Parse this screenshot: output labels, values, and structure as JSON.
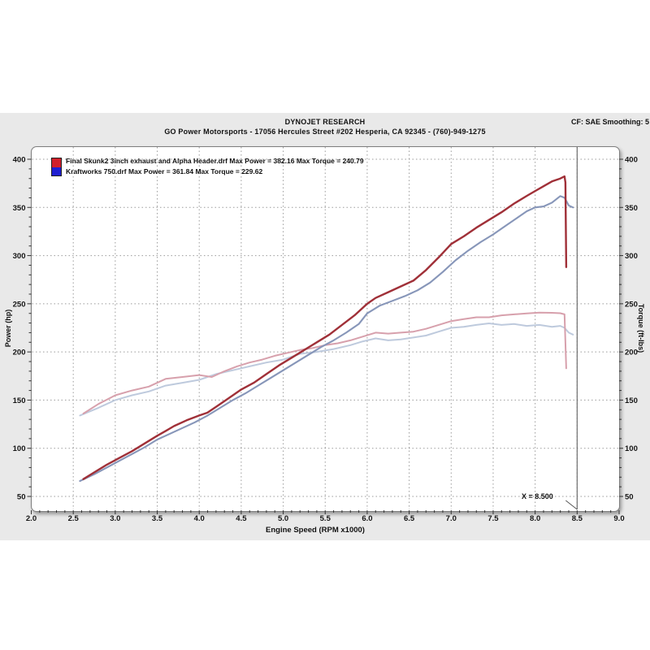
{
  "header": {
    "title": "DYNOJET RESEARCH",
    "subtitle": "GO Power Motorsports - 17056 Hercules Street #202 Hesperia, CA 92345 - (760)-949-1275",
    "cf": "CF: SAE  Smoothing: 5"
  },
  "legend": {
    "swatch_top_color": "#d1202a",
    "swatch_bottom_color": "#1f1fd1",
    "items": [
      {
        "label": "Final Skunk2 3inch exhaust and Alpha Header.drf Max Power = 382.16 Max Torque = 240.79"
      },
      {
        "label": "Kraftworks 750.drf Max Power = 361.84 Max Torque = 229.62"
      }
    ]
  },
  "chart_data": {
    "type": "line",
    "title": "DYNOJET RESEARCH",
    "xlabel": "Engine Speed (RPM x1000)",
    "ylabel_left": "Power (hp)",
    "ylabel_right": "Torque (ft-lbs)",
    "xlim": [
      2.0,
      9.0
    ],
    "ylim_labels": [
      50,
      400
    ],
    "x_tick_labels": [
      "2.0",
      "2.5",
      "3.0",
      "3.5",
      "4.0",
      "4.5",
      "5.0",
      "5.5",
      "6.0",
      "6.5",
      "7.0",
      "7.5",
      "8.0",
      "8.5",
      "9.0"
    ],
    "y_ticks": [
      50,
      100,
      150,
      200,
      250,
      300,
      350,
      400
    ],
    "x_minor_step": 0.1,
    "y_minor_step": 10,
    "grid": true,
    "grid_color": "#9b9b9b",
    "legend_position": "top-left",
    "cursor": {
      "x": 8.5,
      "label": "X = 8.500"
    },
    "series": [
      {
        "name": "Final Skunk2 3inch exhaust and Alpha Header.drf - Power",
        "axis": "power_hp",
        "max": 382.16,
        "color": "#a03038",
        "width": 2.4,
        "points": [
          [
            2.62,
            68
          ],
          [
            2.75,
            75
          ],
          [
            2.9,
            83
          ],
          [
            3.05,
            90
          ],
          [
            3.2,
            97
          ],
          [
            3.35,
            105
          ],
          [
            3.5,
            113
          ],
          [
            3.6,
            118
          ],
          [
            3.7,
            123
          ],
          [
            3.85,
            129
          ],
          [
            4.0,
            134
          ],
          [
            4.1,
            137
          ],
          [
            4.2,
            143
          ],
          [
            4.35,
            152
          ],
          [
            4.5,
            161
          ],
          [
            4.65,
            168
          ],
          [
            4.8,
            177
          ],
          [
            4.95,
            186
          ],
          [
            5.1,
            194
          ],
          [
            5.25,
            202
          ],
          [
            5.4,
            210
          ],
          [
            5.55,
            218
          ],
          [
            5.7,
            228
          ],
          [
            5.85,
            238
          ],
          [
            6.0,
            250
          ],
          [
            6.1,
            256
          ],
          [
            6.25,
            262
          ],
          [
            6.4,
            268
          ],
          [
            6.55,
            274
          ],
          [
            6.7,
            285
          ],
          [
            6.85,
            298
          ],
          [
            7.0,
            312
          ],
          [
            7.15,
            320
          ],
          [
            7.3,
            329
          ],
          [
            7.45,
            337
          ],
          [
            7.6,
            345
          ],
          [
            7.75,
            354
          ],
          [
            7.9,
            362
          ],
          [
            8.0,
            367
          ],
          [
            8.1,
            372
          ],
          [
            8.2,
            377
          ],
          [
            8.3,
            380
          ],
          [
            8.35,
            382.2
          ],
          [
            8.36,
            376
          ],
          [
            8.37,
            288
          ]
        ]
      },
      {
        "name": "Kraftworks 750.drf - Power",
        "axis": "power_hp",
        "max": 361.84,
        "color": "#8796b9",
        "width": 2.1,
        "points": [
          [
            2.58,
            66
          ],
          [
            2.75,
            73
          ],
          [
            2.9,
            80
          ],
          [
            3.05,
            87
          ],
          [
            3.2,
            94
          ],
          [
            3.35,
            101
          ],
          [
            3.5,
            109
          ],
          [
            3.65,
            115
          ],
          [
            3.8,
            121
          ],
          [
            3.95,
            127
          ],
          [
            4.1,
            134
          ],
          [
            4.25,
            142
          ],
          [
            4.4,
            150
          ],
          [
            4.55,
            157
          ],
          [
            4.7,
            165
          ],
          [
            4.85,
            173
          ],
          [
            5.0,
            181
          ],
          [
            5.15,
            189
          ],
          [
            5.3,
            197
          ],
          [
            5.45,
            205
          ],
          [
            5.6,
            212
          ],
          [
            5.75,
            220
          ],
          [
            5.9,
            229
          ],
          [
            6.0,
            240
          ],
          [
            6.15,
            248
          ],
          [
            6.3,
            253
          ],
          [
            6.45,
            258
          ],
          [
            6.6,
            264
          ],
          [
            6.75,
            272
          ],
          [
            6.9,
            283
          ],
          [
            7.05,
            295
          ],
          [
            7.2,
            305
          ],
          [
            7.35,
            314
          ],
          [
            7.5,
            322
          ],
          [
            7.65,
            331
          ],
          [
            7.8,
            340
          ],
          [
            7.9,
            346
          ],
          [
            8.0,
            350
          ],
          [
            8.1,
            351
          ],
          [
            8.2,
            355
          ],
          [
            8.3,
            361.8
          ],
          [
            8.35,
            360
          ],
          [
            8.4,
            352
          ],
          [
            8.45,
            350
          ]
        ]
      },
      {
        "name": "Final Skunk2 3inch exhaust and Alpha Header.drf - Torque",
        "axis": "torque_ftlbs",
        "max": 240.79,
        "color": "#d7a0ac",
        "width": 2.0,
        "points": [
          [
            2.62,
            136
          ],
          [
            2.8,
            146
          ],
          [
            3.0,
            155
          ],
          [
            3.2,
            160
          ],
          [
            3.4,
            164
          ],
          [
            3.6,
            172
          ],
          [
            3.8,
            174
          ],
          [
            4.0,
            176
          ],
          [
            4.15,
            174
          ],
          [
            4.3,
            180
          ],
          [
            4.45,
            185
          ],
          [
            4.6,
            189
          ],
          [
            4.75,
            192
          ],
          [
            4.9,
            196
          ],
          [
            5.05,
            199
          ],
          [
            5.2,
            202
          ],
          [
            5.35,
            204
          ],
          [
            5.5,
            207
          ],
          [
            5.65,
            209
          ],
          [
            5.8,
            212
          ],
          [
            5.95,
            216
          ],
          [
            6.1,
            220
          ],
          [
            6.25,
            219
          ],
          [
            6.4,
            220
          ],
          [
            6.55,
            221
          ],
          [
            6.7,
            224
          ],
          [
            6.85,
            228
          ],
          [
            7.0,
            232
          ],
          [
            7.15,
            234
          ],
          [
            7.3,
            236
          ],
          [
            7.45,
            236
          ],
          [
            7.6,
            238
          ],
          [
            7.75,
            239
          ],
          [
            7.9,
            240
          ],
          [
            8.05,
            240.8
          ],
          [
            8.2,
            240.6
          ],
          [
            8.3,
            240.2
          ],
          [
            8.35,
            239
          ],
          [
            8.37,
            183
          ]
        ]
      },
      {
        "name": "Kraftworks 750.drf - Torque",
        "axis": "torque_ftlbs",
        "max": 229.62,
        "color": "#becadd",
        "width": 2.0,
        "points": [
          [
            2.58,
            134
          ],
          [
            2.8,
            142
          ],
          [
            3.0,
            150
          ],
          [
            3.2,
            155
          ],
          [
            3.4,
            159
          ],
          [
            3.6,
            165
          ],
          [
            3.8,
            168
          ],
          [
            4.0,
            171
          ],
          [
            4.2,
            177
          ],
          [
            4.4,
            181
          ],
          [
            4.6,
            185
          ],
          [
            4.8,
            189
          ],
          [
            5.0,
            192
          ],
          [
            5.2,
            198
          ],
          [
            5.4,
            200
          ],
          [
            5.6,
            203
          ],
          [
            5.8,
            207
          ],
          [
            5.95,
            211
          ],
          [
            6.1,
            214
          ],
          [
            6.25,
            212
          ],
          [
            6.4,
            213
          ],
          [
            6.55,
            215
          ],
          [
            6.7,
            217
          ],
          [
            6.85,
            221
          ],
          [
            7.0,
            225
          ],
          [
            7.15,
            226
          ],
          [
            7.3,
            228
          ],
          [
            7.45,
            229.6
          ],
          [
            7.6,
            228
          ],
          [
            7.75,
            229
          ],
          [
            7.9,
            227
          ],
          [
            8.05,
            228
          ],
          [
            8.2,
            226
          ],
          [
            8.3,
            227
          ],
          [
            8.35,
            225
          ],
          [
            8.4,
            220
          ],
          [
            8.45,
            218
          ]
        ]
      }
    ]
  }
}
